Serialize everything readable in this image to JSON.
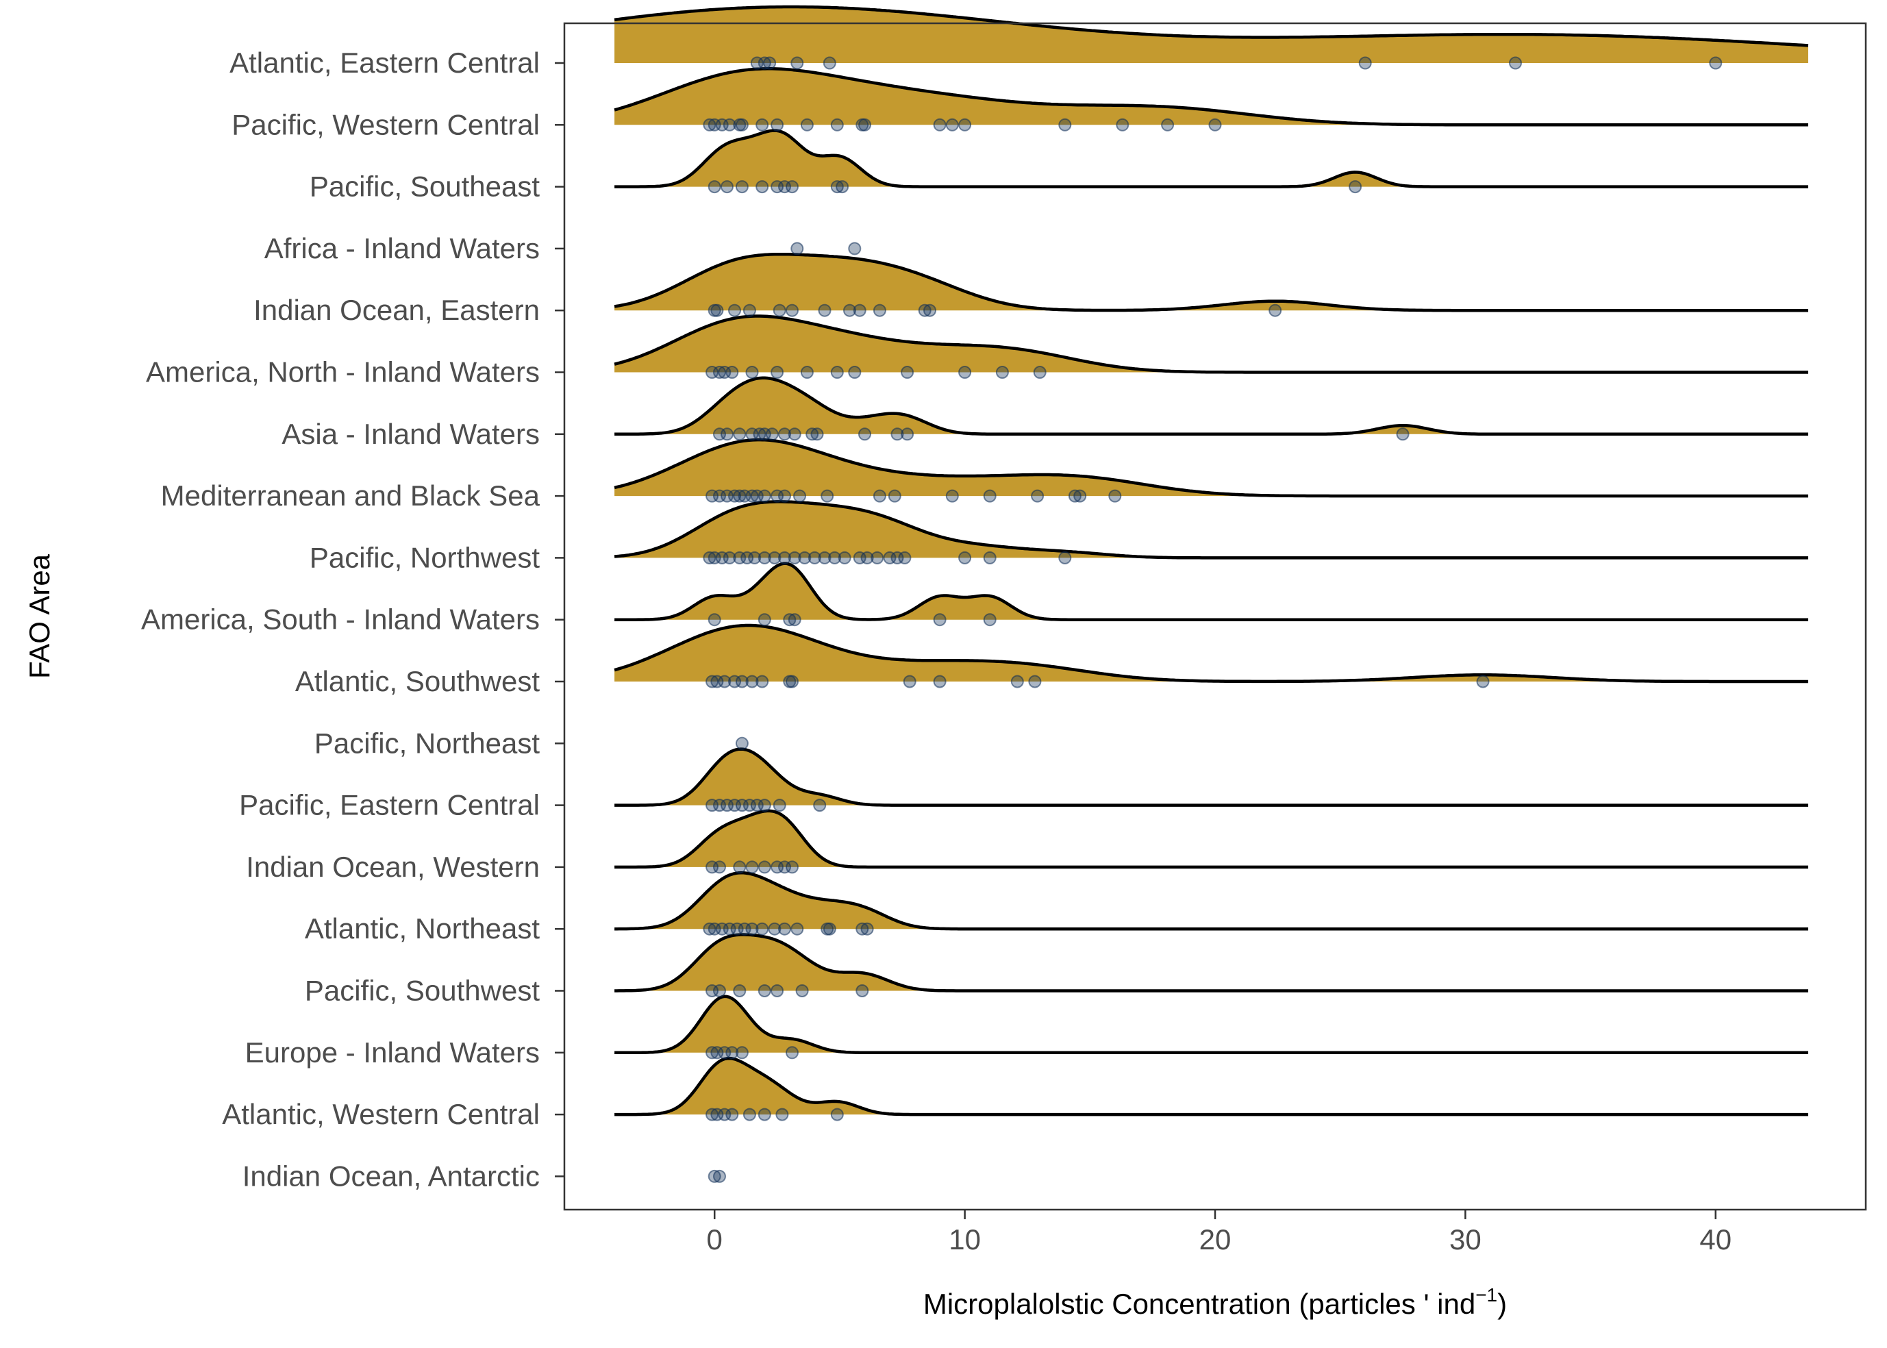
{
  "chart_data": {
    "type": "ridgeline",
    "xlabel": "Microplalolstic Concentration (particles ' ind",
    "xlabel_superscript": "−1",
    "xlabel_suffix": ")",
    "ylabel": "FAO Area",
    "xlim": [
      -6,
      46
    ],
    "x_ticks": [
      "0",
      "10",
      "20",
      "30",
      "40"
    ],
    "fill_color": "#C49A2F",
    "point_color": "#0E2E57",
    "grid": false,
    "legend": "none",
    "series": [
      {
        "name": "Atlantic, Eastern Central",
        "values": [
          1.7,
          2.0,
          2.2,
          3.3,
          4.6,
          26.0,
          32.0,
          40.0
        ]
      },
      {
        "name": "Pacific, Western Central",
        "values": [
          -0.2,
          0.0,
          0.3,
          0.6,
          1.0,
          1.1,
          1.9,
          2.5,
          3.7,
          4.9,
          5.9,
          6.0,
          9.0,
          9.5,
          10.0,
          14.0,
          16.3,
          18.1,
          20.0
        ]
      },
      {
        "name": "Pacific, Southeast",
        "values": [
          0.0,
          0.5,
          1.1,
          1.9,
          2.5,
          2.8,
          3.1,
          4.9,
          5.1,
          25.6
        ]
      },
      {
        "name": "Africa - Inland Waters",
        "values": [
          3.3,
          5.6
        ]
      },
      {
        "name": "Indian Ocean, Eastern",
        "values": [
          0.0,
          0.1,
          0.8,
          1.4,
          2.6,
          3.1,
          4.4,
          5.4,
          5.8,
          6.6,
          8.4,
          8.6,
          22.4
        ]
      },
      {
        "name": "America, North - Inland Waters",
        "values": [
          -0.1,
          0.2,
          0.4,
          0.7,
          1.5,
          2.5,
          3.7,
          4.9,
          5.6,
          7.7,
          10.0,
          11.5,
          13.0
        ]
      },
      {
        "name": "Asia - Inland Waters",
        "values": [
          0.2,
          0.5,
          1.0,
          1.5,
          1.8,
          2.0,
          2.3,
          2.8,
          3.2,
          3.9,
          4.1,
          6.0,
          7.3,
          7.7,
          27.5
        ]
      },
      {
        "name": "Mediterranean and Black Sea",
        "values": [
          -0.1,
          0.2,
          0.5,
          0.8,
          1.0,
          1.2,
          1.5,
          1.7,
          2.0,
          2.5,
          2.8,
          3.4,
          4.5,
          6.6,
          7.2,
          9.5,
          11.0,
          12.9,
          14.4,
          14.6,
          16.0
        ]
      },
      {
        "name": "Pacific, Northwest",
        "values": [
          -0.2,
          0.0,
          0.3,
          0.6,
          1.0,
          1.3,
          1.6,
          2.0,
          2.4,
          2.8,
          3.2,
          3.6,
          4.0,
          4.4,
          4.8,
          5.2,
          5.8,
          6.1,
          6.5,
          7.0,
          7.3,
          7.6,
          10.0,
          11.0,
          14.0
        ]
      },
      {
        "name": "America, South - Inland Waters",
        "values": [
          0.0,
          2.0,
          3.0,
          3.2,
          9.0,
          11.0
        ]
      },
      {
        "name": "Atlantic, Southwest",
        "values": [
          -0.1,
          0.1,
          0.4,
          0.8,
          1.1,
          1.5,
          1.9,
          3.0,
          3.1,
          7.8,
          9.0,
          12.1,
          12.8,
          30.7
        ]
      },
      {
        "name": "Pacific, Northeast",
        "values": [
          1.1
        ]
      },
      {
        "name": "Pacific, Eastern Central",
        "values": [
          -0.1,
          0.2,
          0.5,
          0.8,
          1.1,
          1.4,
          1.7,
          2.0,
          2.6,
          4.2
        ]
      },
      {
        "name": "Indian Ocean, Western",
        "values": [
          -0.1,
          0.2,
          1.0,
          1.5,
          2.0,
          2.5,
          2.8,
          3.1
        ]
      },
      {
        "name": "Atlantic, Northeast",
        "values": [
          -0.2,
          0.0,
          0.3,
          0.6,
          0.9,
          1.2,
          1.5,
          1.9,
          2.4,
          2.8,
          3.3,
          4.5,
          4.6,
          5.9,
          6.1
        ]
      },
      {
        "name": "Pacific, Southwest",
        "values": [
          -0.1,
          0.2,
          1.0,
          2.0,
          2.5,
          3.5,
          5.9
        ]
      },
      {
        "name": "Europe - Inland Waters",
        "values": [
          -0.1,
          0.1,
          0.4,
          0.7,
          1.1,
          3.1
        ]
      },
      {
        "name": "Atlantic, Western Central",
        "values": [
          -0.1,
          0.1,
          0.4,
          0.7,
          1.4,
          2.0,
          2.7,
          4.9
        ]
      },
      {
        "name": "Indian Ocean, Antarctic",
        "values": [
          0.0,
          0.2
        ]
      }
    ]
  }
}
